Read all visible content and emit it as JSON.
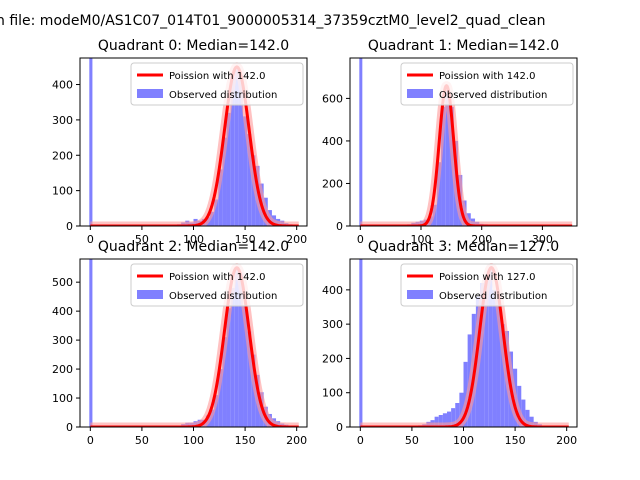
{
  "suptitle": "n file: modeM0/AS1C07_014T01_9000005314_37359cztM0_level2_quad_clean",
  "colors": {
    "bar": "#8080ff",
    "fit": "#ff0000",
    "fit_halo": "#ff9999"
  },
  "chart_data": [
    {
      "type": "bar",
      "title": "Quadrant 0: Median=142.0",
      "xlim": [
        -10,
        210
      ],
      "ylim": [
        0,
        475
      ],
      "xticks": [
        0,
        50,
        100,
        150,
        200
      ],
      "yticks": [
        0,
        100,
        200,
        300,
        400
      ],
      "legend_position": "top-right",
      "legend": [
        "Poission with 142.0",
        "Observed distribution"
      ],
      "spike": {
        "x": 0,
        "height": 475
      },
      "histogram": {
        "bin_width": 4,
        "bin_starts": [
          84,
          88,
          92,
          96,
          100,
          104,
          108,
          112,
          116,
          120,
          124,
          128,
          132,
          136,
          140,
          144,
          148,
          152,
          156,
          160,
          164,
          168,
          172,
          176,
          180,
          184,
          188,
          192,
          196
        ],
        "values": [
          5,
          10,
          15,
          10,
          20,
          15,
          20,
          25,
          40,
          75,
          160,
          250,
          320,
          420,
          450,
          420,
          310,
          260,
          200,
          170,
          120,
          80,
          45,
          30,
          20,
          15,
          8,
          5,
          3
        ]
      },
      "fit": {
        "mean": 142.0,
        "peak": 450
      }
    },
    {
      "type": "bar",
      "title": "Quadrant 1: Median=142.0",
      "xlim": [
        -17,
        357
      ],
      "ylim": [
        0,
        790
      ],
      "xticks": [
        0,
        100,
        200,
        300
      ],
      "yticks": [
        0,
        200,
        400,
        600
      ],
      "legend_position": "top-right",
      "legend": [
        "Poission with 142.0",
        "Observed distribution"
      ],
      "spike": {
        "x": 0,
        "height": 790
      },
      "histogram": {
        "bin_width": 7,
        "bin_starts": [
          70,
          77,
          84,
          91,
          98,
          105,
          112,
          119,
          126,
          133,
          140,
          147,
          154,
          161,
          168,
          175,
          182,
          189,
          196,
          203,
          210,
          217
        ],
        "values": [
          5,
          8,
          15,
          20,
          25,
          30,
          45,
          100,
          300,
          560,
          640,
          560,
          400,
          240,
          120,
          60,
          35,
          20,
          10,
          8,
          5,
          3
        ]
      },
      "fit": {
        "mean": 142.0,
        "peak": 660
      }
    },
    {
      "type": "bar",
      "title": "Quadrant 2: Median=142.0",
      "xlim": [
        -10,
        210
      ],
      "ylim": [
        0,
        580
      ],
      "xticks": [
        0,
        50,
        100,
        150,
        200
      ],
      "yticks": [
        0,
        100,
        200,
        300,
        400,
        500
      ],
      "legend_position": "top-right",
      "legend": [
        "Poission with 142.0",
        "Observed distribution"
      ],
      "spike": {
        "x": 0,
        "height": 580
      },
      "histogram": {
        "bin_width": 4,
        "bin_starts": [
          84,
          88,
          92,
          96,
          100,
          104,
          108,
          112,
          116,
          120,
          124,
          128,
          132,
          136,
          140,
          144,
          148,
          152,
          156,
          160,
          164,
          168,
          172,
          176,
          180,
          184,
          188,
          192,
          196
        ],
        "values": [
          5,
          10,
          15,
          15,
          20,
          25,
          25,
          40,
          60,
          110,
          200,
          310,
          410,
          480,
          550,
          530,
          420,
          330,
          250,
          180,
          120,
          70,
          45,
          30,
          20,
          12,
          8,
          5,
          3
        ]
      },
      "fit": {
        "mean": 142.0,
        "peak": 550
      }
    },
    {
      "type": "bar",
      "title": "Quadrant 3: Median=127.0",
      "xlim": [
        -10,
        210
      ],
      "ylim": [
        0,
        490
      ],
      "xticks": [
        0,
        50,
        100,
        150,
        200
      ],
      "yticks": [
        0,
        100,
        200,
        300,
        400
      ],
      "legend_position": "top-right",
      "legend": [
        "Poission with 127.0",
        "Observed distribution"
      ],
      "spike": {
        "x": 0,
        "height": 490
      },
      "histogram": {
        "bin_width": 4,
        "bin_starts": [
          56,
          60,
          64,
          68,
          72,
          76,
          80,
          84,
          88,
          92,
          96,
          100,
          104,
          108,
          112,
          116,
          120,
          124,
          128,
          132,
          136,
          140,
          144,
          148,
          152,
          156,
          160,
          164,
          168,
          172,
          176
        ],
        "values": [
          5,
          8,
          15,
          20,
          30,
          35,
          40,
          45,
          55,
          70,
          100,
          190,
          270,
          330,
          380,
          420,
          430,
          460,
          400,
          370,
          300,
          280,
          220,
          170,
          120,
          80,
          50,
          30,
          15,
          8,
          4
        ]
      },
      "fit": {
        "mean": 127.0,
        "peak": 465
      }
    }
  ]
}
